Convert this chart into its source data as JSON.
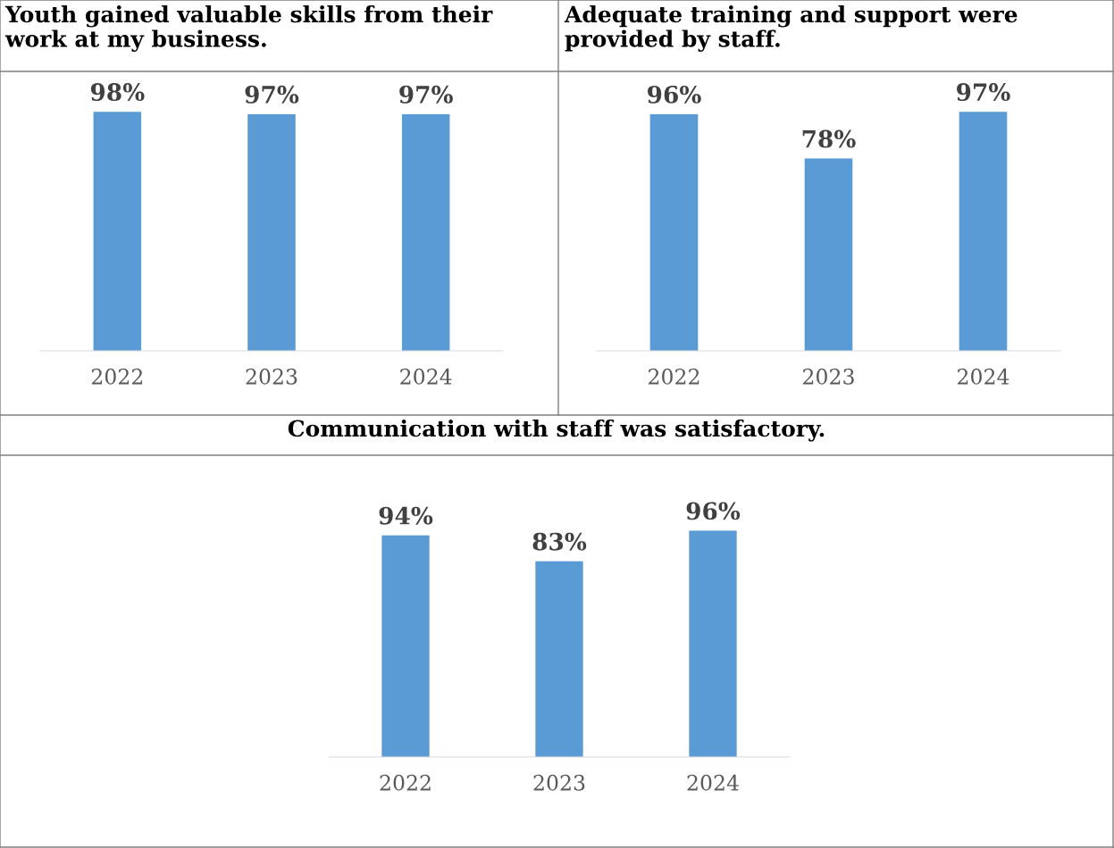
{
  "chart_data": [
    {
      "type": "bar",
      "title": "Youth gained valuable skills from their\nwork at my business.",
      "categories": [
        "2022",
        "2023",
        "2024"
      ],
      "values": [
        98,
        97,
        97
      ],
      "value_labels": [
        "98%",
        "97%",
        "97%"
      ],
      "color": "#5b9bd5",
      "tick_labels": "x",
      "grid": false,
      "legend": false
    },
    {
      "type": "bar",
      "title": "Adequate training and support were\nprovided by staff.",
      "categories": [
        "2022",
        "2023",
        "2024"
      ],
      "values": [
        96,
        78,
        97
      ],
      "value_labels": [
        "96%",
        "78%",
        "97%"
      ],
      "color": "#5b9bd5",
      "tick_labels": "x",
      "grid": false,
      "legend": false
    },
    {
      "type": "bar",
      "title": "Communication with staff was satisfactory.",
      "categories": [
        "2022",
        "2023",
        "2024"
      ],
      "values": [
        94,
        83,
        96
      ],
      "value_labels": [
        "94%",
        "83%",
        "96%"
      ],
      "color": "#5b9bd5",
      "tick_labels": "x",
      "grid": false,
      "legend": false
    }
  ]
}
